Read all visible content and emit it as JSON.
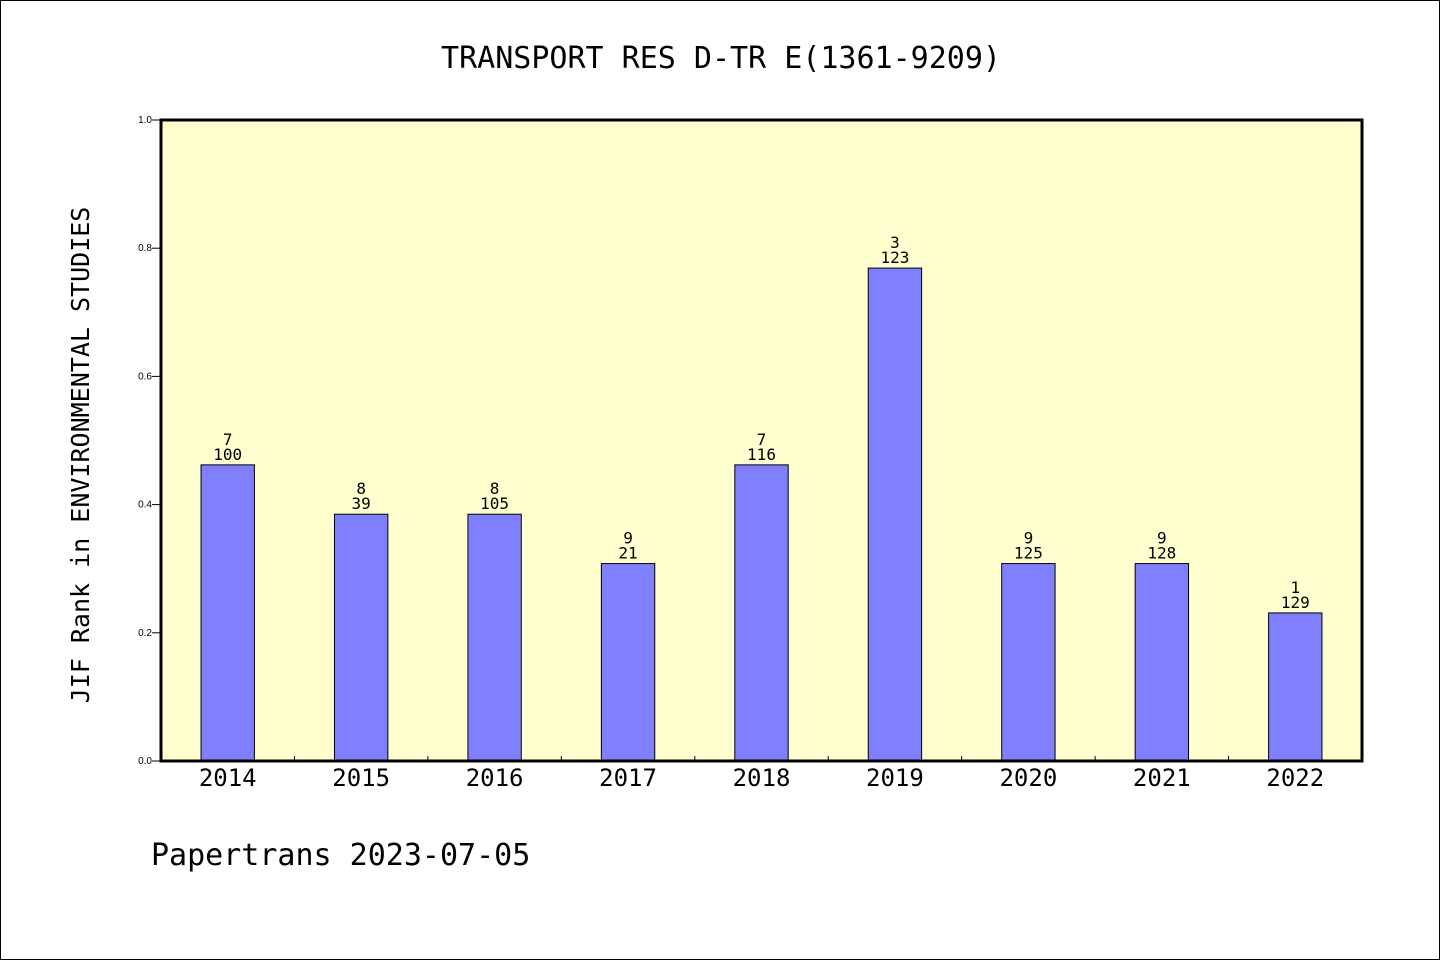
{
  "colors": {
    "plot_background": "#ffffd0",
    "bar_fill": "#8080ff",
    "bar_stroke": "#000000"
  },
  "footer": "Papertrans 2023-07-05",
  "chart_data": {
    "type": "bar",
    "title": "TRANSPORT RES D-TR E(1361-9209)",
    "xlabel": "",
    "ylabel": "JIF Rank in ENVIRONMENTAL STUDIES",
    "ylim": [
      0,
      1.0
    ],
    "yticks": [
      "0.0",
      "0.2",
      "0.4",
      "0.6",
      "0.8",
      "1.0"
    ],
    "grid": false,
    "categories": [
      "2014",
      "2015",
      "2016",
      "2017",
      "2018",
      "2019",
      "2020",
      "2021",
      "2022"
    ],
    "values": [
      0.462,
      0.385,
      0.385,
      0.308,
      0.462,
      0.769,
      0.308,
      0.308,
      0.231
    ],
    "data_labels": [
      {
        "top": "7",
        "bottom": "100"
      },
      {
        "top": "8",
        "bottom": "39"
      },
      {
        "top": "8",
        "bottom": "105"
      },
      {
        "top": "9",
        "bottom": "21"
      },
      {
        "top": "7",
        "bottom": "116"
      },
      {
        "top": "3",
        "bottom": "123"
      },
      {
        "top": "9",
        "bottom": "125"
      },
      {
        "top": "9",
        "bottom": "128"
      },
      {
        "top": "1",
        "bottom": "129"
      }
    ]
  }
}
